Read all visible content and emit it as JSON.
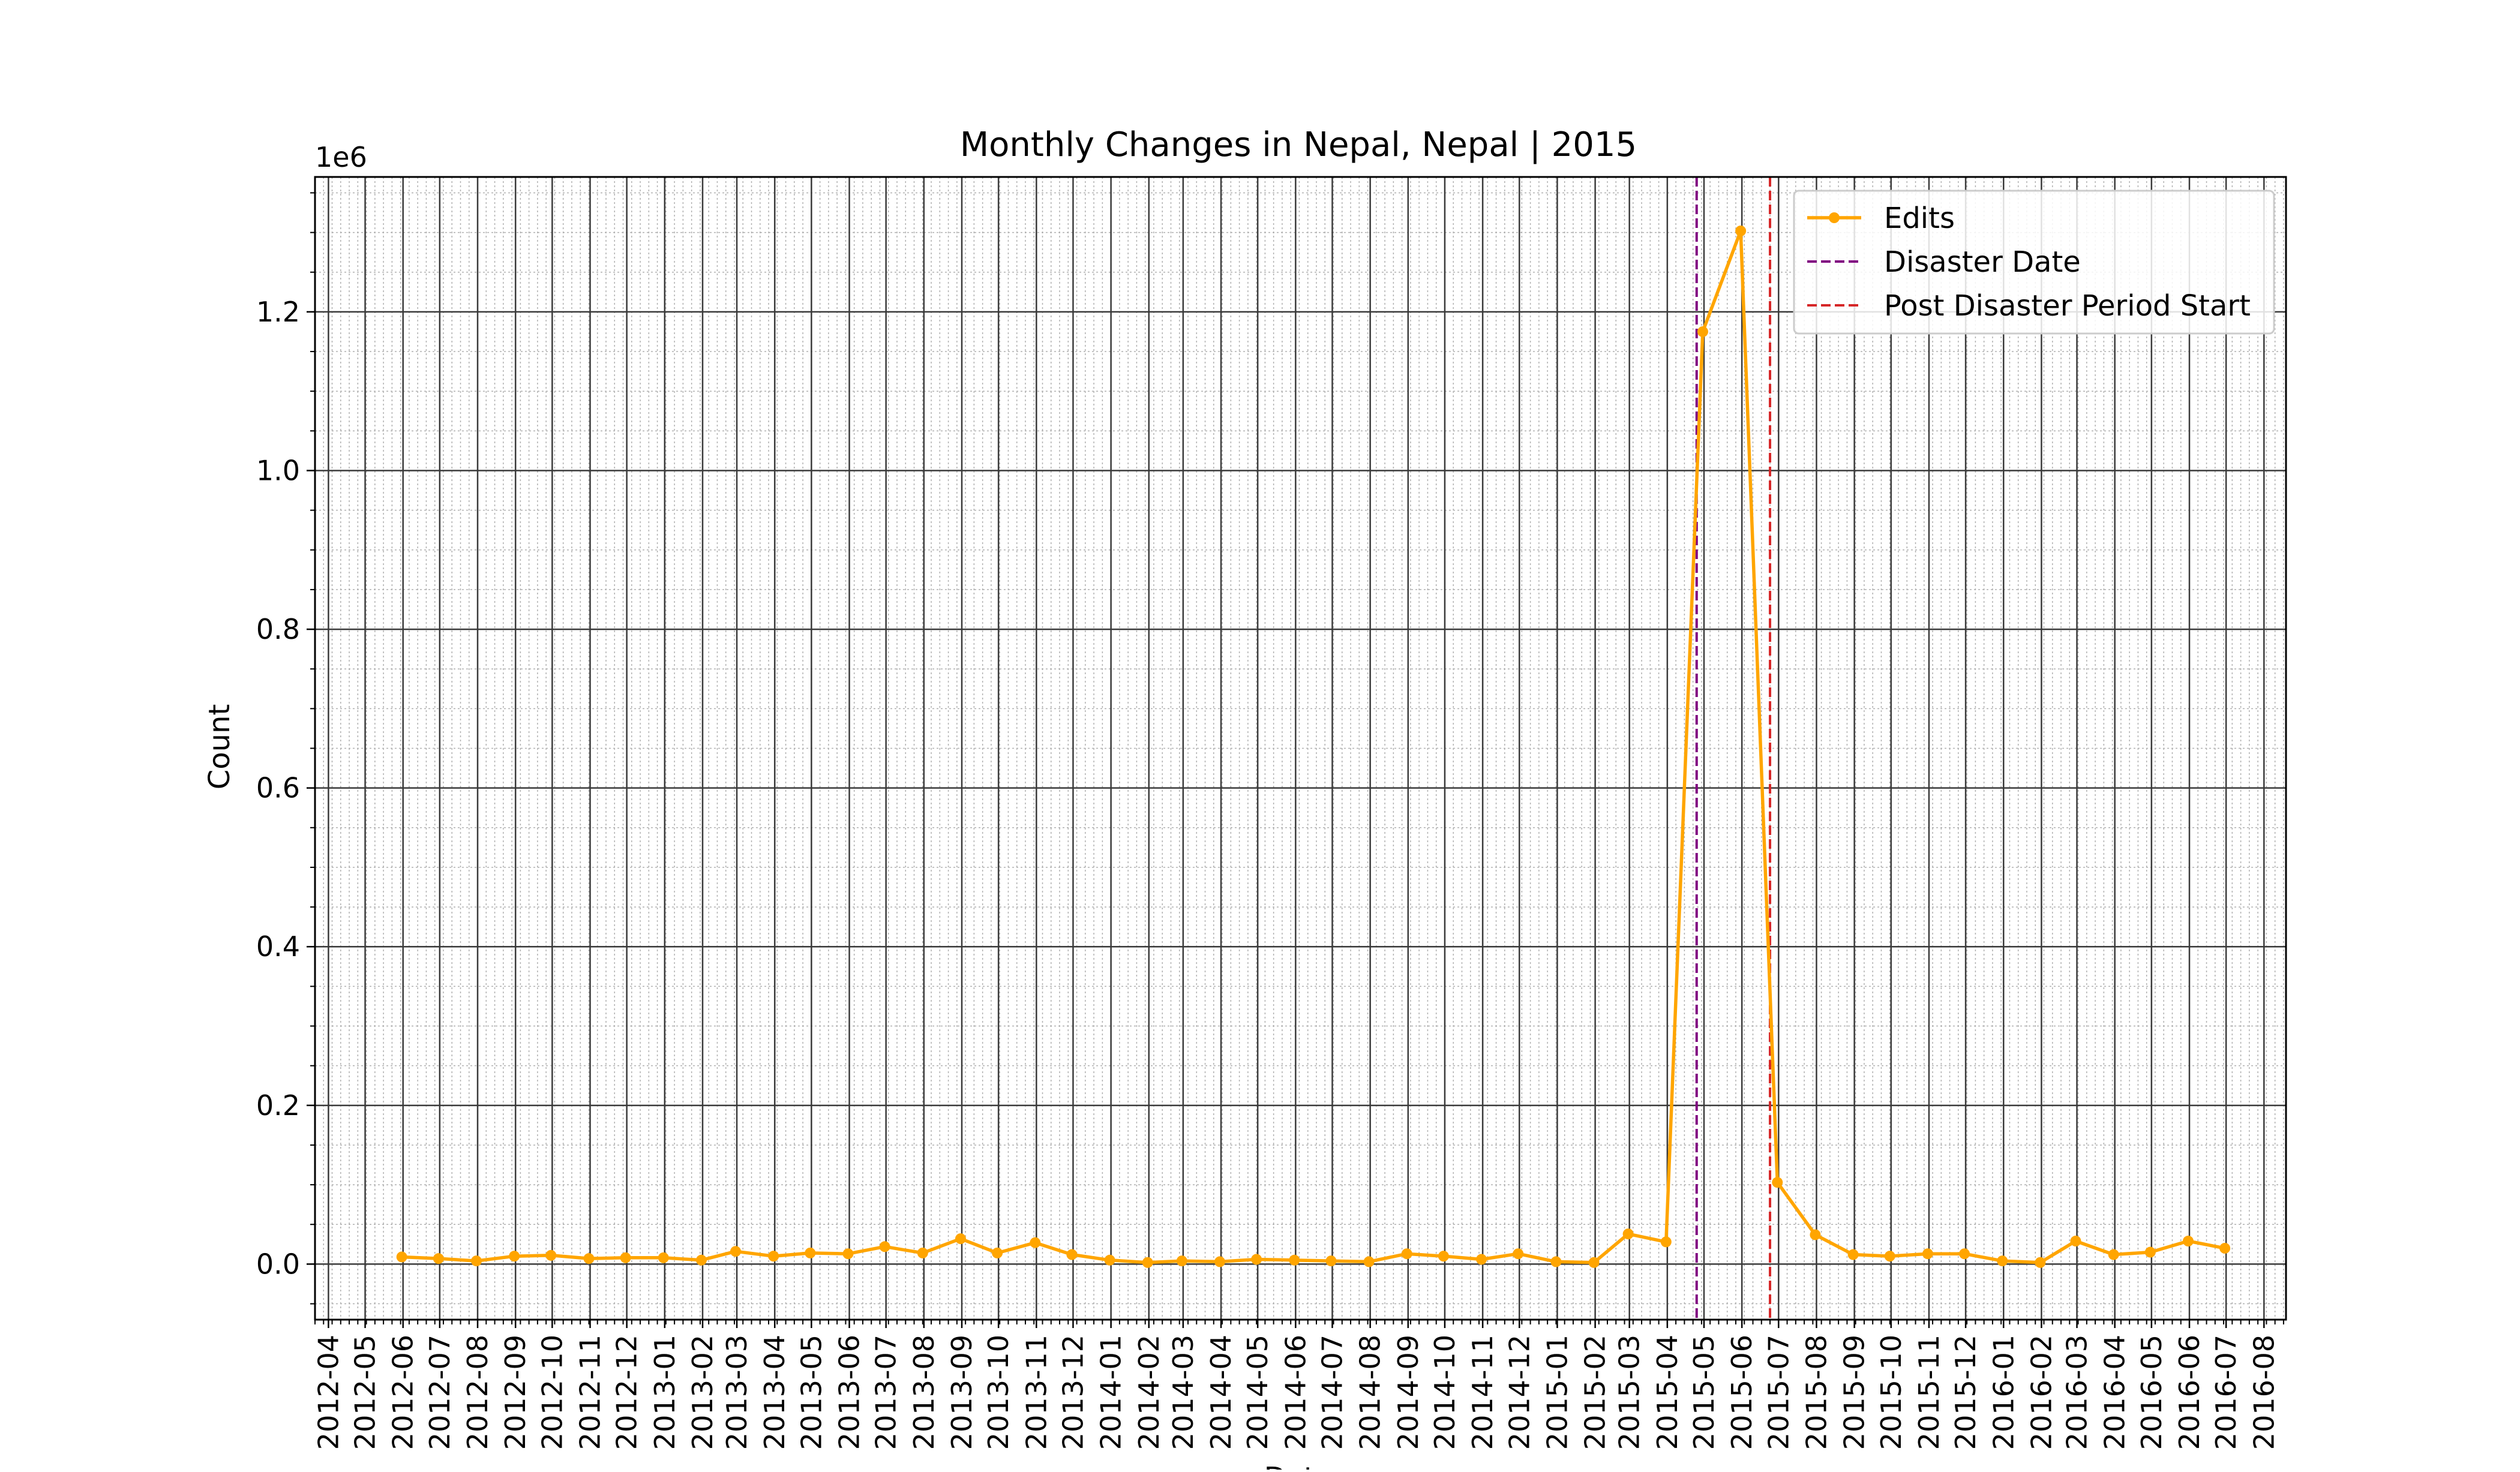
{
  "chart_data": {
    "type": "line",
    "title": "Monthly Changes in Nepal, Nepal | 2015",
    "xlabel": "Date",
    "ylabel": "Count",
    "y_offset_label": "1e6",
    "ylim": [
      -70000,
      1370000
    ],
    "y_major_ticks": [
      0,
      200000,
      400000,
      600000,
      800000,
      1000000,
      1200000
    ],
    "y_tick_labels": [
      "0.0",
      "0.2",
      "0.4",
      "0.6",
      "0.8",
      "1.0",
      "1.2"
    ],
    "xlim": [
      "2012-03-21",
      "2016-08-19"
    ],
    "x_tick_labels": [
      "2012-04",
      "2012-05",
      "2012-06",
      "2012-07",
      "2012-08",
      "2012-09",
      "2012-10",
      "2012-11",
      "2012-12",
      "2013-01",
      "2013-02",
      "2013-03",
      "2013-04",
      "2013-05",
      "2013-06",
      "2013-07",
      "2013-08",
      "2013-09",
      "2013-10",
      "2013-11",
      "2013-12",
      "2014-01",
      "2014-02",
      "2014-03",
      "2014-04",
      "2014-05",
      "2014-06",
      "2014-07",
      "2014-08",
      "2014-09",
      "2014-10",
      "2014-11",
      "2014-12",
      "2015-01",
      "2015-02",
      "2015-03",
      "2015-04",
      "2015-05",
      "2015-06",
      "2015-07",
      "2015-08",
      "2015-09",
      "2015-10",
      "2015-11",
      "2015-12",
      "2016-01",
      "2016-02",
      "2016-03",
      "2016-04",
      "2016-05",
      "2016-06",
      "2016-07",
      "2016-08"
    ],
    "grid": true,
    "legend_placement": "top-right",
    "series": [
      {
        "name": "Edits",
        "color": "#ffa500",
        "x": [
          "2012-05-31",
          "2012-06-30",
          "2012-07-31",
          "2012-08-31",
          "2012-09-30",
          "2012-10-31",
          "2012-11-30",
          "2012-12-31",
          "2013-01-31",
          "2013-02-28",
          "2013-03-31",
          "2013-04-30",
          "2013-05-31",
          "2013-06-30",
          "2013-07-31",
          "2013-08-31",
          "2013-09-30",
          "2013-10-31",
          "2013-11-30",
          "2013-12-31",
          "2014-01-31",
          "2014-02-28",
          "2014-03-31",
          "2014-04-30",
          "2014-05-31",
          "2014-06-30",
          "2014-07-31",
          "2014-08-31",
          "2014-09-30",
          "2014-10-31",
          "2014-11-30",
          "2014-12-31",
          "2015-01-31",
          "2015-02-28",
          "2015-03-31",
          "2015-04-30",
          "2015-05-31",
          "2015-06-30",
          "2015-07-31",
          "2015-08-31",
          "2015-09-30",
          "2015-10-31",
          "2015-11-30",
          "2015-12-31",
          "2016-01-31",
          "2016-02-29",
          "2016-03-31",
          "2016-04-30",
          "2016-05-31",
          "2016-06-30"
        ],
        "values": [
          9000,
          7000,
          4000,
          10000,
          11000,
          7000,
          8000,
          8000,
          5000,
          16000,
          10000,
          14000,
          13000,
          22000,
          14000,
          32000,
          14000,
          27000,
          12000,
          5000,
          2000,
          4000,
          3000,
          6000,
          5000,
          4000,
          3000,
          13000,
          10000,
          6000,
          13000,
          3000,
          2000,
          38000,
          28000,
          1175000,
          1302000,
          103000,
          37000,
          12000,
          10000,
          13000,
          13000,
          4000,
          2000,
          29000,
          12000,
          15000,
          29000,
          20000
        ]
      }
    ],
    "vlines": [
      {
        "name": "Disaster Date",
        "x": "2015-04-25",
        "color": "#800080"
      },
      {
        "name": "Post Disaster Period Start",
        "x": "2015-06-24",
        "color": "#d62728"
      }
    ]
  }
}
